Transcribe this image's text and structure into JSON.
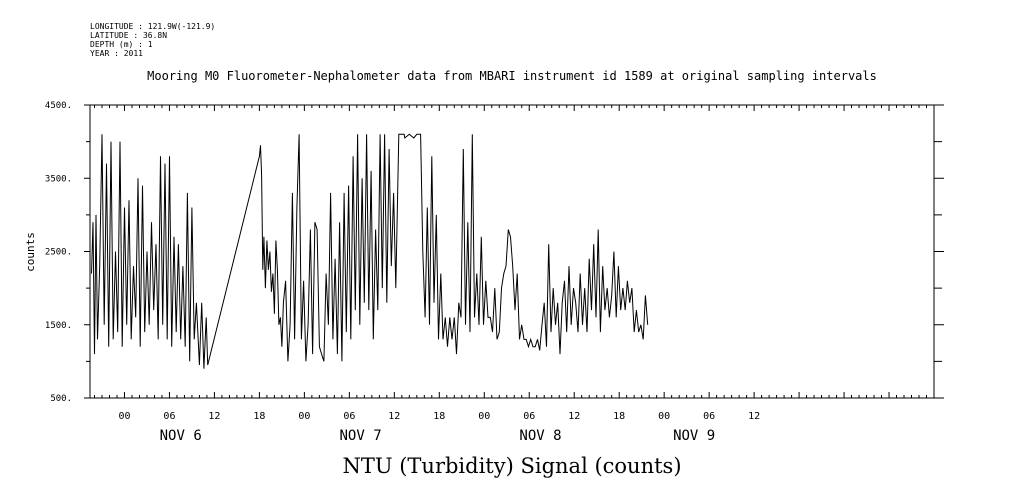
{
  "meta": {
    "longitude": "LONGITUDE : 121.9W(-121.9)",
    "latitude": "LATITUDE : 36.8N",
    "depth": "DEPTH (m) : 1",
    "year": "YEAR : 2011"
  },
  "chart_data": {
    "type": "line",
    "title": "Mooring M0 Fluorometer-Nephalometer data from MBARI instrument id 1589 at original sampling intervals",
    "ylabel": "counts",
    "xlabel": "",
    "caption": "NTU (Turbidity) Signal (counts)",
    "xlim": [
      -4.6,
      108
    ],
    "ylim": [
      500,
      4500
    ],
    "yticks": [
      500,
      1500,
      2500,
      3500,
      4500
    ],
    "ytick_labels": [
      "500.",
      "1500.",
      "2500.",
      "3500.",
      "4500."
    ],
    "xtick_positions": [
      0,
      6,
      12,
      18,
      24,
      30,
      36,
      42,
      48,
      54,
      60,
      66,
      72,
      78,
      84,
      90,
      96,
      102
    ],
    "xtick_labels": [
      "00",
      "06",
      "12",
      "18",
      "00",
      "06",
      "12",
      "18",
      "00",
      "06",
      "12",
      "18",
      "00",
      "06",
      "12"
    ],
    "xtick_label_positions": [
      0,
      6,
      12,
      18,
      24,
      30,
      36,
      42,
      48,
      54,
      60,
      66,
      72,
      78,
      84
    ],
    "day_labels": [
      {
        "label": "NOV  6",
        "x": 7.5
      },
      {
        "label": "NOV  7",
        "x": 31.5
      },
      {
        "label": "NOV  8",
        "x": 55.5
      },
      {
        "label": "NOV  9",
        "x": 76
      }
    ],
    "series": [
      {
        "values": [
          [
            -4.4,
            2200
          ],
          [
            -4.2,
            2900
          ],
          [
            -4.0,
            1100
          ],
          [
            -3.8,
            3000
          ],
          [
            -3.6,
            1300
          ],
          [
            -3.3,
            2300
          ],
          [
            -3.0,
            4100
          ],
          [
            -2.7,
            1500
          ],
          [
            -2.4,
            3700
          ],
          [
            -2.1,
            1200
          ],
          [
            -1.8,
            4000
          ],
          [
            -1.5,
            1300
          ],
          [
            -1.2,
            2500
          ],
          [
            -0.9,
            1400
          ],
          [
            -0.6,
            4000
          ],
          [
            -0.3,
            1200
          ],
          [
            0.0,
            3100
          ],
          [
            0.3,
            1500
          ],
          [
            0.6,
            3200
          ],
          [
            0.9,
            1300
          ],
          [
            1.2,
            2300
          ],
          [
            1.5,
            1600
          ],
          [
            1.8,
            3500
          ],
          [
            2.1,
            1200
          ],
          [
            2.4,
            3400
          ],
          [
            2.7,
            1400
          ],
          [
            3.0,
            2500
          ],
          [
            3.3,
            1500
          ],
          [
            3.6,
            2900
          ],
          [
            3.9,
            1700
          ],
          [
            4.2,
            2600
          ],
          [
            4.5,
            1300
          ],
          [
            4.8,
            3800
          ],
          [
            5.1,
            1500
          ],
          [
            5.4,
            3700
          ],
          [
            5.7,
            1300
          ],
          [
            6.0,
            3800
          ],
          [
            6.3,
            1200
          ],
          [
            6.6,
            2700
          ],
          [
            6.9,
            1400
          ],
          [
            7.2,
            2600
          ],
          [
            7.5,
            1300
          ],
          [
            7.8,
            2300
          ],
          [
            8.1,
            1200
          ],
          [
            8.4,
            3300
          ],
          [
            8.7,
            1000
          ],
          [
            9.0,
            3100
          ],
          [
            9.3,
            1300
          ],
          [
            9.6,
            1800
          ],
          [
            10.0,
            950
          ],
          [
            10.3,
            1800
          ],
          [
            10.6,
            900
          ],
          [
            10.9,
            1600
          ],
          [
            11.1,
            950
          ],
          [
            18.0,
            3800
          ],
          [
            18.15,
            3950
          ],
          [
            18.3,
            3550
          ],
          [
            18.45,
            2250
          ],
          [
            18.6,
            2700
          ],
          [
            18.8,
            2000
          ],
          [
            19.0,
            2650
          ],
          [
            19.2,
            2250
          ],
          [
            19.4,
            2500
          ],
          [
            19.6,
            1950
          ],
          [
            19.8,
            2200
          ],
          [
            20.0,
            1650
          ],
          [
            20.2,
            2650
          ],
          [
            20.4,
            2250
          ],
          [
            20.6,
            1500
          ],
          [
            20.8,
            1600
          ],
          [
            21.0,
            1200
          ],
          [
            21.2,
            1800
          ],
          [
            21.5,
            2100
          ],
          [
            21.8,
            1000
          ],
          [
            22.1,
            1500
          ],
          [
            22.4,
            3300
          ],
          [
            22.7,
            1300
          ],
          [
            23.0,
            3100
          ],
          [
            23.3,
            4100
          ],
          [
            23.6,
            1300
          ],
          [
            23.9,
            2100
          ],
          [
            24.2,
            1000
          ],
          [
            24.5,
            1500
          ],
          [
            24.8,
            2800
          ],
          [
            25.1,
            1100
          ],
          [
            25.4,
            2900
          ],
          [
            25.7,
            2800
          ],
          [
            26.0,
            1200
          ],
          [
            26.3,
            1100
          ],
          [
            26.6,
            1000
          ],
          [
            26.9,
            2200
          ],
          [
            27.2,
            1500
          ],
          [
            27.5,
            3300
          ],
          [
            27.8,
            1300
          ],
          [
            28.1,
            2400
          ],
          [
            28.4,
            1100
          ],
          [
            28.7,
            2900
          ],
          [
            29.0,
            1000
          ],
          [
            29.3,
            3300
          ],
          [
            29.6,
            1400
          ],
          [
            29.9,
            3400
          ],
          [
            30.2,
            1300
          ],
          [
            30.5,
            3800
          ],
          [
            30.8,
            1700
          ],
          [
            31.1,
            4100
          ],
          [
            31.4,
            1500
          ],
          [
            31.7,
            3500
          ],
          [
            32.0,
            1800
          ],
          [
            32.3,
            4100
          ],
          [
            32.6,
            1700
          ],
          [
            32.9,
            3600
          ],
          [
            33.2,
            1300
          ],
          [
            33.5,
            2800
          ],
          [
            33.8,
            1700
          ],
          [
            34.1,
            4100
          ],
          [
            34.4,
            2000
          ],
          [
            34.7,
            4100
          ],
          [
            35.0,
            1800
          ],
          [
            35.3,
            3900
          ],
          [
            35.6,
            2300
          ],
          [
            35.9,
            3300
          ],
          [
            36.2,
            2000
          ],
          [
            36.6,
            4100
          ],
          [
            37.0,
            4100
          ],
          [
            37.3,
            4100
          ],
          [
            37.4,
            4050
          ],
          [
            38.0,
            4100
          ],
          [
            38.6,
            4050
          ],
          [
            39.0,
            4100
          ],
          [
            39.5,
            4100
          ],
          [
            39.8,
            2500
          ],
          [
            40.1,
            1600
          ],
          [
            40.4,
            3100
          ],
          [
            40.7,
            1500
          ],
          [
            41.0,
            3800
          ],
          [
            41.3,
            1800
          ],
          [
            41.6,
            3000
          ],
          [
            41.9,
            1300
          ],
          [
            42.2,
            2200
          ],
          [
            42.5,
            1300
          ],
          [
            42.8,
            1600
          ],
          [
            43.1,
            1200
          ],
          [
            43.4,
            1600
          ],
          [
            43.7,
            1300
          ],
          [
            44.0,
            1600
          ],
          [
            44.3,
            1100
          ],
          [
            44.6,
            1800
          ],
          [
            44.9,
            1600
          ],
          [
            45.2,
            3900
          ],
          [
            45.5,
            1500
          ],
          [
            45.8,
            2900
          ],
          [
            46.1,
            1400
          ],
          [
            46.4,
            4100
          ],
          [
            46.7,
            1600
          ],
          [
            47.0,
            2200
          ],
          [
            47.3,
            1500
          ],
          [
            47.6,
            2700
          ],
          [
            47.9,
            1500
          ],
          [
            48.2,
            2100
          ],
          [
            48.5,
            1600
          ],
          [
            48.8,
            1600
          ],
          [
            49.1,
            1400
          ],
          [
            49.4,
            2000
          ],
          [
            49.7,
            1300
          ],
          [
            50.0,
            1400
          ],
          [
            50.3,
            2000
          ],
          [
            50.6,
            2200
          ],
          [
            50.9,
            2300
          ],
          [
            51.2,
            2800
          ],
          [
            51.5,
            2700
          ],
          [
            51.8,
            2300
          ],
          [
            52.1,
            1700
          ],
          [
            52.4,
            2200
          ],
          [
            52.7,
            1300
          ],
          [
            53.0,
            1500
          ],
          [
            53.3,
            1300
          ],
          [
            53.6,
            1300
          ],
          [
            53.9,
            1200
          ],
          [
            54.2,
            1300
          ],
          [
            54.5,
            1200
          ],
          [
            54.8,
            1200
          ],
          [
            55.1,
            1300
          ],
          [
            55.4,
            1150
          ],
          [
            55.7,
            1500
          ],
          [
            56.0,
            1800
          ],
          [
            56.3,
            1200
          ],
          [
            56.6,
            2600
          ],
          [
            56.9,
            1400
          ],
          [
            57.2,
            2000
          ],
          [
            57.5,
            1500
          ],
          [
            57.8,
            1800
          ],
          [
            58.1,
            1100
          ],
          [
            58.4,
            1800
          ],
          [
            58.7,
            2100
          ],
          [
            59.0,
            1400
          ],
          [
            59.3,
            2300
          ],
          [
            59.6,
            1500
          ],
          [
            59.9,
            2000
          ],
          [
            60.2,
            1800
          ],
          [
            60.5,
            1400
          ],
          [
            60.8,
            2200
          ],
          [
            61.1,
            1500
          ],
          [
            61.4,
            2000
          ],
          [
            61.7,
            1400
          ],
          [
            62.0,
            2400
          ],
          [
            62.3,
            1700
          ],
          [
            62.6,
            2600
          ],
          [
            62.9,
            1600
          ],
          [
            63.2,
            2800
          ],
          [
            63.5,
            1400
          ],
          [
            63.8,
            2300
          ],
          [
            64.1,
            1700
          ],
          [
            64.4,
            2000
          ],
          [
            64.7,
            1600
          ],
          [
            65.0,
            1900
          ],
          [
            65.3,
            2500
          ],
          [
            65.6,
            1600
          ],
          [
            65.9,
            2300
          ],
          [
            66.2,
            1700
          ],
          [
            66.5,
            2000
          ],
          [
            66.8,
            1700
          ],
          [
            67.1,
            2100
          ],
          [
            67.4,
            1800
          ],
          [
            67.7,
            2000
          ],
          [
            68.0,
            1400
          ],
          [
            68.3,
            1700
          ],
          [
            68.6,
            1400
          ],
          [
            68.9,
            1500
          ],
          [
            69.2,
            1300
          ],
          [
            69.5,
            1900
          ],
          [
            69.8,
            1500
          ]
        ]
      }
    ]
  }
}
